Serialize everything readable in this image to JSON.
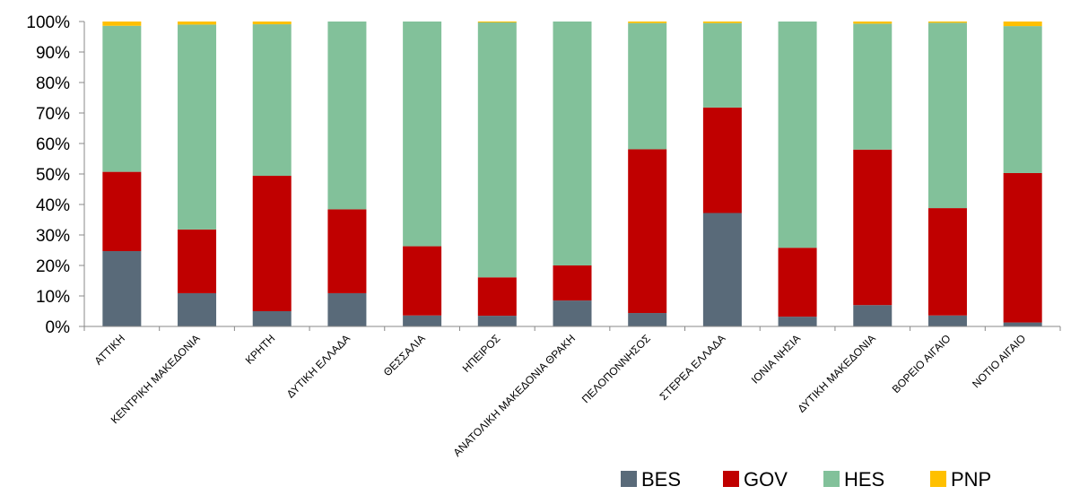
{
  "chart_data": {
    "type": "bar",
    "stacked": true,
    "percent": true,
    "categories": [
      "ΑΤΤΙΚΗ",
      "ΚΕΝΤΡΙΚΗ ΜΑΚΕΔΟΝΙΑ",
      "ΚΡΗΤΗ",
      "ΔΥΤΙΚΗ ΕΛΛΑΔΑ",
      "ΘΕΣΣΑΛΙΑ",
      "ΗΠΕΙΡΟΣ",
      "ΑΝΑΤΟΛΙΚΗ ΜΑΚΕΔΟΝΙΑ ΘΡΑΚΗ",
      "ΠΕΛΟΠΟΝΝΗΣΟΣ",
      "ΣΤΕΡΕΑ ΕΛΛΑΔΑ",
      "ΙΟΝΙΑ ΝΗΣΙΑ",
      "ΔΥΤΙΚΗ ΜΑΚΕΔΟΝΙΑ",
      "ΒΟΡΕΙΟ ΑΙΓΑΙΟ",
      "ΝΟΤΙΟ ΑΙΓΑΙΟ"
    ],
    "series": [
      {
        "name": "BES",
        "color": "#596a79",
        "values": [
          24.7,
          10.9,
          5.0,
          10.9,
          3.6,
          3.5,
          8.5,
          4.4,
          37.2,
          3.2,
          7.0,
          3.6,
          1.3
        ]
      },
      {
        "name": "GOV",
        "color": "#c00000",
        "values": [
          26.0,
          20.9,
          44.4,
          27.5,
          22.7,
          12.6,
          11.5,
          53.7,
          34.6,
          22.6,
          51.0,
          35.2,
          49.0
        ]
      },
      {
        "name": "HES",
        "color": "#82c19a",
        "values": [
          47.9,
          67.2,
          49.7,
          61.6,
          73.7,
          83.6,
          80.0,
          41.4,
          27.7,
          74.2,
          41.3,
          60.8,
          48.2
        ]
      },
      {
        "name": "PNP",
        "color": "#ffc000",
        "values": [
          1.4,
          1.0,
          0.9,
          0.0,
          0.0,
          0.3,
          0.0,
          0.5,
          0.5,
          0.0,
          0.7,
          0.4,
          1.5
        ]
      }
    ],
    "ylim": [
      0,
      100
    ],
    "yticks": [
      "0%",
      "10%",
      "20%",
      "30%",
      "40%",
      "50%",
      "60%",
      "70%",
      "80%",
      "90%",
      "100%"
    ],
    "grid": false,
    "legend_position": "bottom-right"
  }
}
